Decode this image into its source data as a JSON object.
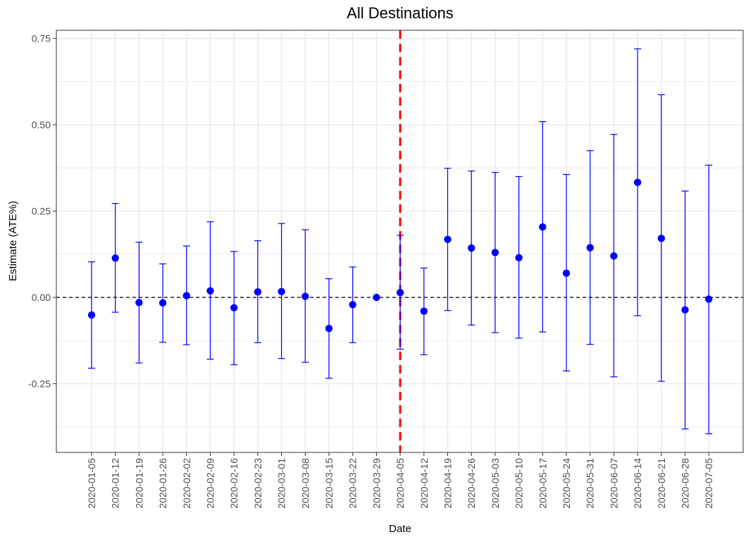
{
  "chart_data": {
    "type": "scatter",
    "title": "All Destinations",
    "xlabel": "Date",
    "ylabel": "Estimate (ATE%)",
    "ylim": [
      -0.44,
      0.77
    ],
    "yticks": [
      -0.25,
      0.0,
      0.25,
      0.5,
      0.75
    ],
    "ytick_labels": [
      "-0.25",
      "0.00",
      "0.25",
      "0.50",
      "0.75"
    ],
    "grid": true,
    "reference_line_y": 0,
    "event_line_x": "2020-04-05",
    "colors": {
      "points": "#0000ff",
      "event_line": "#ff0000",
      "reference_line": "#000000",
      "grid": "#ebebeb",
      "panel_border": "#333333"
    },
    "series": [
      {
        "name": "Estimate",
        "x": [
          "2020-01-05",
          "2020-01-12",
          "2020-01-19",
          "2020-01-26",
          "2020-02-02",
          "2020-02-09",
          "2020-02-16",
          "2020-02-23",
          "2020-03-01",
          "2020-03-08",
          "2020-03-15",
          "2020-03-22",
          "2020-03-29",
          "2020-04-05",
          "2020-04-12",
          "2020-04-19",
          "2020-04-26",
          "2020-05-03",
          "2020-05-10",
          "2020-05-17",
          "2020-05-24",
          "2020-05-31",
          "2020-06-07",
          "2020-06-14",
          "2020-06-21",
          "2020-06-28",
          "2020-07-05"
        ],
        "estimate": [
          -0.051,
          0.114,
          -0.015,
          -0.016,
          0.005,
          0.019,
          -0.03,
          0.016,
          0.017,
          0.003,
          -0.09,
          -0.021,
          0.0,
          0.014,
          -0.04,
          0.168,
          0.143,
          0.13,
          0.115,
          0.204,
          0.07,
          0.144,
          0.12,
          0.333,
          0.171,
          -0.036,
          -0.005
        ],
        "lower": [
          -0.205,
          -0.043,
          -0.19,
          -0.13,
          -0.137,
          -0.179,
          -0.195,
          -0.131,
          -0.177,
          -0.188,
          -0.234,
          -0.131,
          0.0,
          -0.15,
          -0.166,
          -0.038,
          -0.08,
          -0.102,
          -0.118,
          -0.1,
          -0.213,
          -0.136,
          -0.23,
          -0.053,
          -0.243,
          -0.381,
          -0.395
        ],
        "upper": [
          0.103,
          0.272,
          0.16,
          0.097,
          0.149,
          0.219,
          0.133,
          0.164,
          0.214,
          0.196,
          0.054,
          0.088,
          0.0,
          0.18,
          0.085,
          0.374,
          0.366,
          0.362,
          0.35,
          0.509,
          0.356,
          0.425,
          0.472,
          0.72,
          0.587,
          0.308,
          0.383
        ]
      }
    ]
  }
}
